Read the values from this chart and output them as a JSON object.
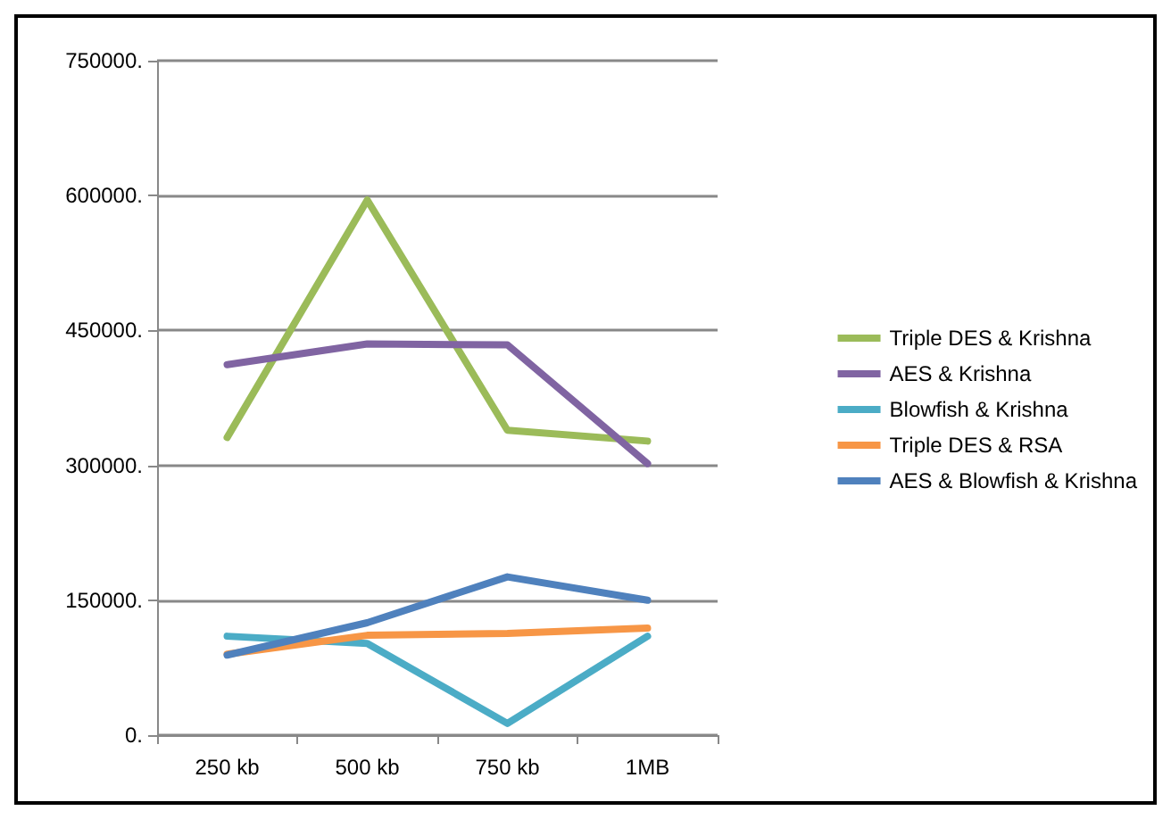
{
  "chart_data": {
    "type": "line",
    "categories": [
      "250 kb",
      "500 kb",
      "750 kb",
      "1MB"
    ],
    "series": [
      {
        "name": "Triple DES & Krishna",
        "color": "#9bbb59",
        "values": [
          331000,
          595000,
          339000,
          327000
        ]
      },
      {
        "name": "AES & Krishna",
        "color": "#8064a2",
        "values": [
          412000,
          435000,
          434000,
          302000
        ]
      },
      {
        "name": "Blowfish & Krishna",
        "color": "#4bacc6",
        "values": [
          110000,
          102000,
          13000,
          110000
        ]
      },
      {
        "name": "Triple DES & RSA",
        "color": "#f79646",
        "values": [
          90000,
          111000,
          113000,
          119000
        ]
      },
      {
        "name": "AES & Blowfish & Krishna",
        "color": "#4f81bd",
        "values": [
          89000,
          125000,
          176000,
          150000
        ]
      }
    ],
    "ylim": [
      0,
      750000
    ],
    "yticks": [
      {
        "value": 0,
        "label": "0."
      },
      {
        "value": 150000,
        "label": "150000."
      },
      {
        "value": 300000,
        "label": "300000."
      },
      {
        "value": 450000,
        "label": "450000."
      },
      {
        "value": 600000,
        "label": "600000."
      },
      {
        "value": 750000,
        "label": "750000."
      }
    ],
    "grid": "y",
    "legend": "right",
    "marker": "none",
    "line_style": "solid"
  }
}
